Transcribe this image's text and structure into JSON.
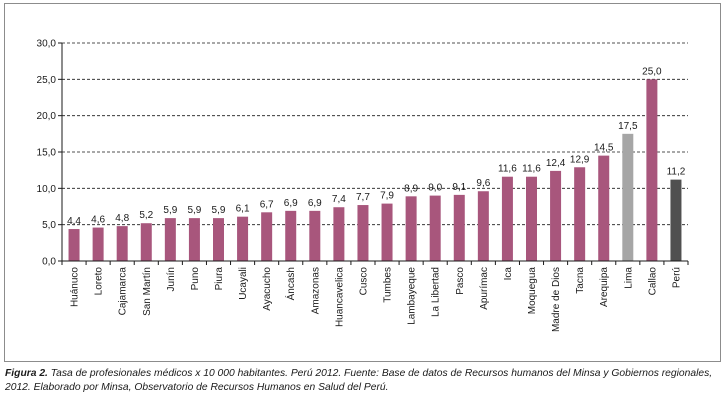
{
  "chart_data": {
    "type": "bar",
    "title": "",
    "xlabel": "",
    "ylabel": "",
    "ylim": [
      0,
      30
    ],
    "yticks": [
      "0,0",
      "5,0",
      "10,0",
      "15,0",
      "20,0",
      "25,0",
      "30,0"
    ],
    "grid": "horizontal-dashed",
    "categories": [
      "Huánuco",
      "Loreto",
      "Cajamarca",
      "San Martín",
      "Junín",
      "Puno",
      "Piura",
      "Ucayali",
      "Ayacucho",
      "Áncash",
      "Amazonas",
      "Huancavelica",
      "Cusco",
      "Tumbes",
      "Lambayeque",
      "La Libertad",
      "Pasco",
      "Apurímac",
      "Ica",
      "Moquegua",
      "Madre de Dios",
      "Tacna",
      "Arequipa",
      "Lima",
      "Callao",
      "Perú"
    ],
    "values": [
      4.4,
      4.6,
      4.8,
      5.2,
      5.9,
      5.9,
      5.9,
      6.1,
      6.7,
      6.9,
      6.9,
      7.4,
      7.7,
      7.9,
      8.9,
      9.0,
      9.1,
      9.6,
      11.6,
      11.6,
      12.4,
      12.9,
      14.5,
      17.5,
      25.0,
      11.2
    ],
    "value_labels": [
      "4,4",
      "4,6",
      "4,8",
      "5,2",
      "5,9",
      "5,9",
      "5,9",
      "6,1",
      "6,7",
      "6,9",
      "6,9",
      "7,4",
      "7,7",
      "7,9",
      "8,9",
      "9,0",
      "9,1",
      "9,6",
      "11,6",
      "11,6",
      "12,4",
      "12,9",
      "14,5",
      "17,5",
      "25,0",
      "11,2"
    ],
    "colors": {
      "default": "#a8567c",
      "Lima": "#a6a6a6",
      "Perú": "#505050"
    }
  },
  "caption": {
    "label": "Figura 2.",
    "text": " Tasa de profesionales médicos x 10 000 habitantes. Perú 2012. Fuente: Base de datos de Recursos humanos del Minsa y Gobiernos regionales, 2012. Elaborado por Minsa, Observatorio de Recursos Humanos en Salud del Perú."
  }
}
